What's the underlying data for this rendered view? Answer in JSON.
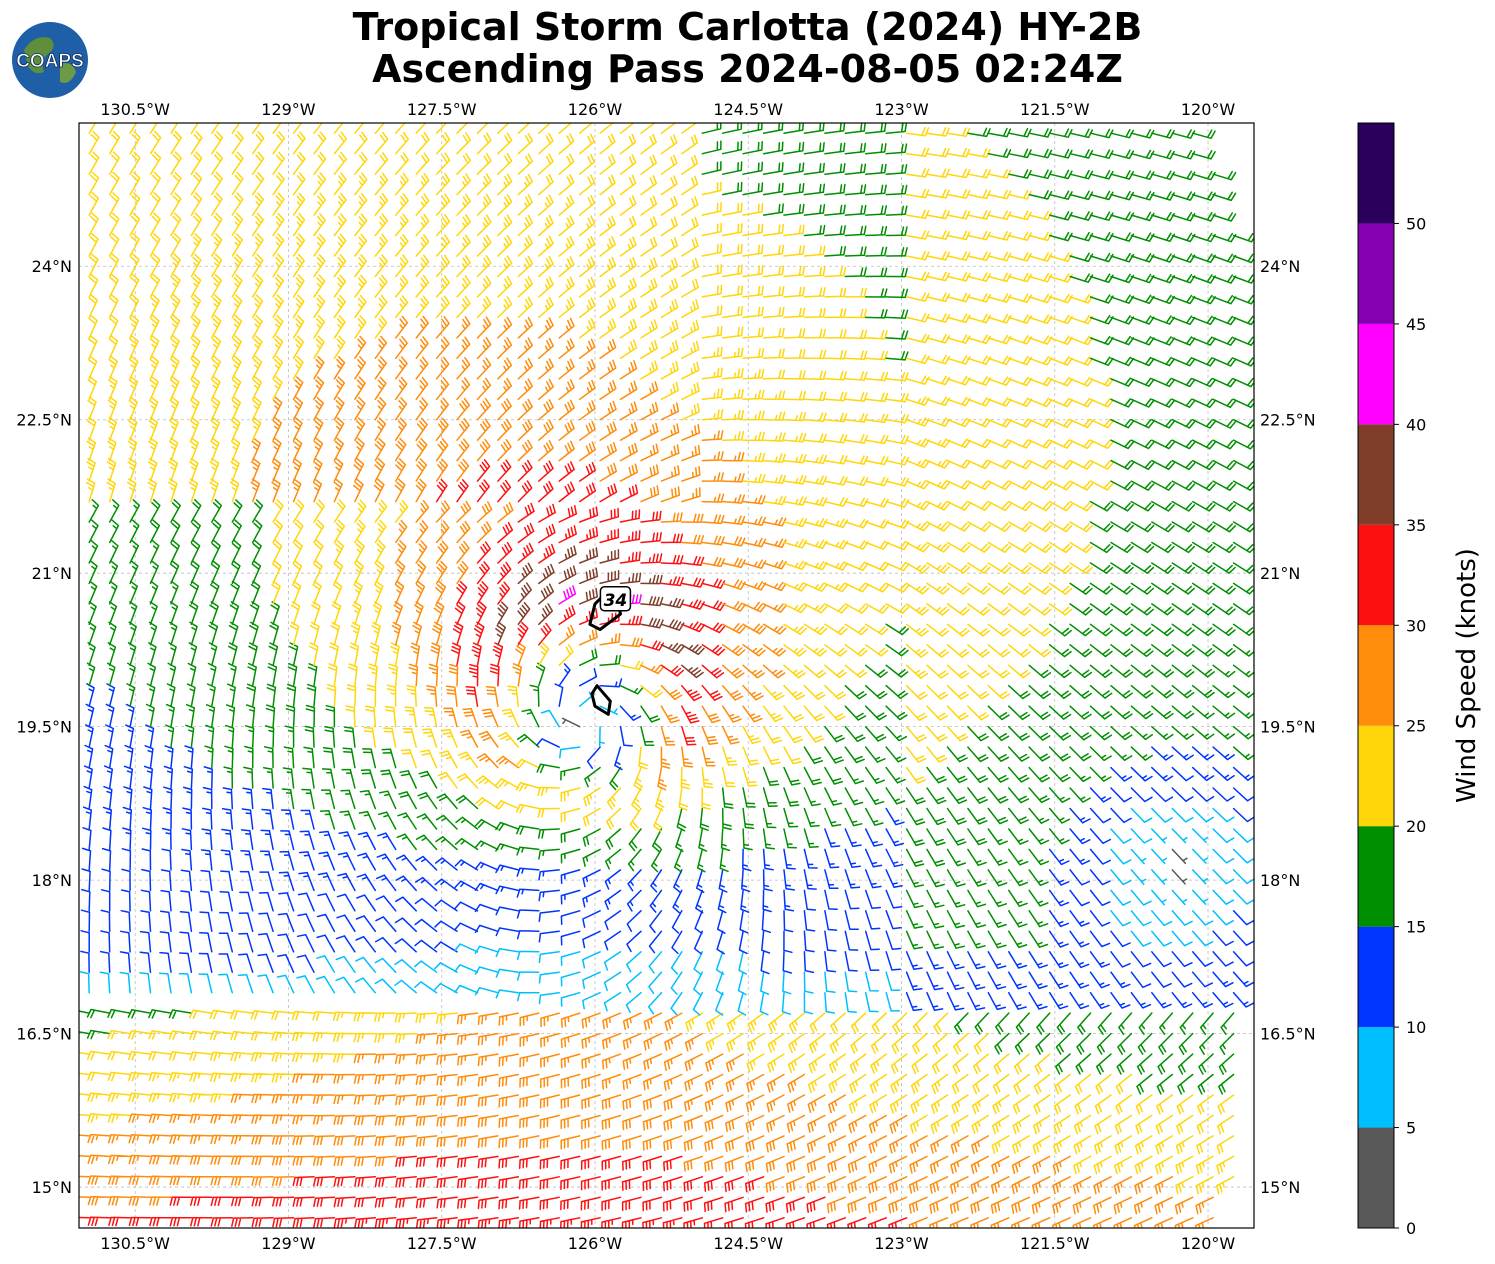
{
  "title_line1": "Tropical Storm Carlotta (2024) HY-2B",
  "title_line2": "Ascending Pass 2024-08-05 02:24Z",
  "logo_text": "COAPS",
  "chart_data": {
    "type": "wind-barb map",
    "title": "Tropical Storm Carlotta (2024) HY-2B Ascending Pass 2024-08-05 02:24Z",
    "lon_range": [
      -131.05,
      -119.55
    ],
    "lat_range": [
      14.6,
      25.4
    ],
    "lon_ticks": [
      "130.5°W",
      "129°W",
      "127.5°W",
      "126°W",
      "124.5°W",
      "123°W",
      "121.5°W",
      "120°W"
    ],
    "lon_tick_values": [
      -130.5,
      -129,
      -127.5,
      -126,
      -124.5,
      -123,
      -121.5,
      -120
    ],
    "lat_ticks": [
      "24°N",
      "22.5°N",
      "21°N",
      "19.5°N",
      "18°N",
      "16.5°N",
      "15°N"
    ],
    "lat_tick_values": [
      24,
      22.5,
      21,
      19.5,
      18,
      16.5,
      15
    ],
    "grid": true,
    "storm_center": {
      "lon": -126.1,
      "lat": 19.8
    },
    "contour_label": "34",
    "contour_label_position": {
      "lon": -125.8,
      "lat": 20.75
    },
    "colorbar": {
      "label": "Wind Speed (knots)",
      "ticks": [
        0,
        5,
        10,
        15,
        20,
        25,
        30,
        35,
        40,
        45,
        50
      ],
      "range": [
        0,
        55
      ],
      "bins": [
        {
          "from": 0,
          "to": 5,
          "color": "#595959"
        },
        {
          "from": 5,
          "to": 10,
          "color": "#00bfff"
        },
        {
          "from": 10,
          "to": 15,
          "color": "#0035ff"
        },
        {
          "from": 15,
          "to": 20,
          "color": "#008f00"
        },
        {
          "from": 20,
          "to": 25,
          "color": "#ffd60a"
        },
        {
          "from": 25,
          "to": 30,
          "color": "#ff8c0a"
        },
        {
          "from": 30,
          "to": 35,
          "color": "#ff1010"
        },
        {
          "from": 35,
          "to": 40,
          "color": "#7f3d2a"
        },
        {
          "from": 40,
          "to": 45,
          "color": "#ff00ff"
        },
        {
          "from": 45,
          "to": 50,
          "color": "#8400b0"
        },
        {
          "from": 50,
          "to": 55,
          "color": "#2b005c"
        }
      ]
    }
  }
}
